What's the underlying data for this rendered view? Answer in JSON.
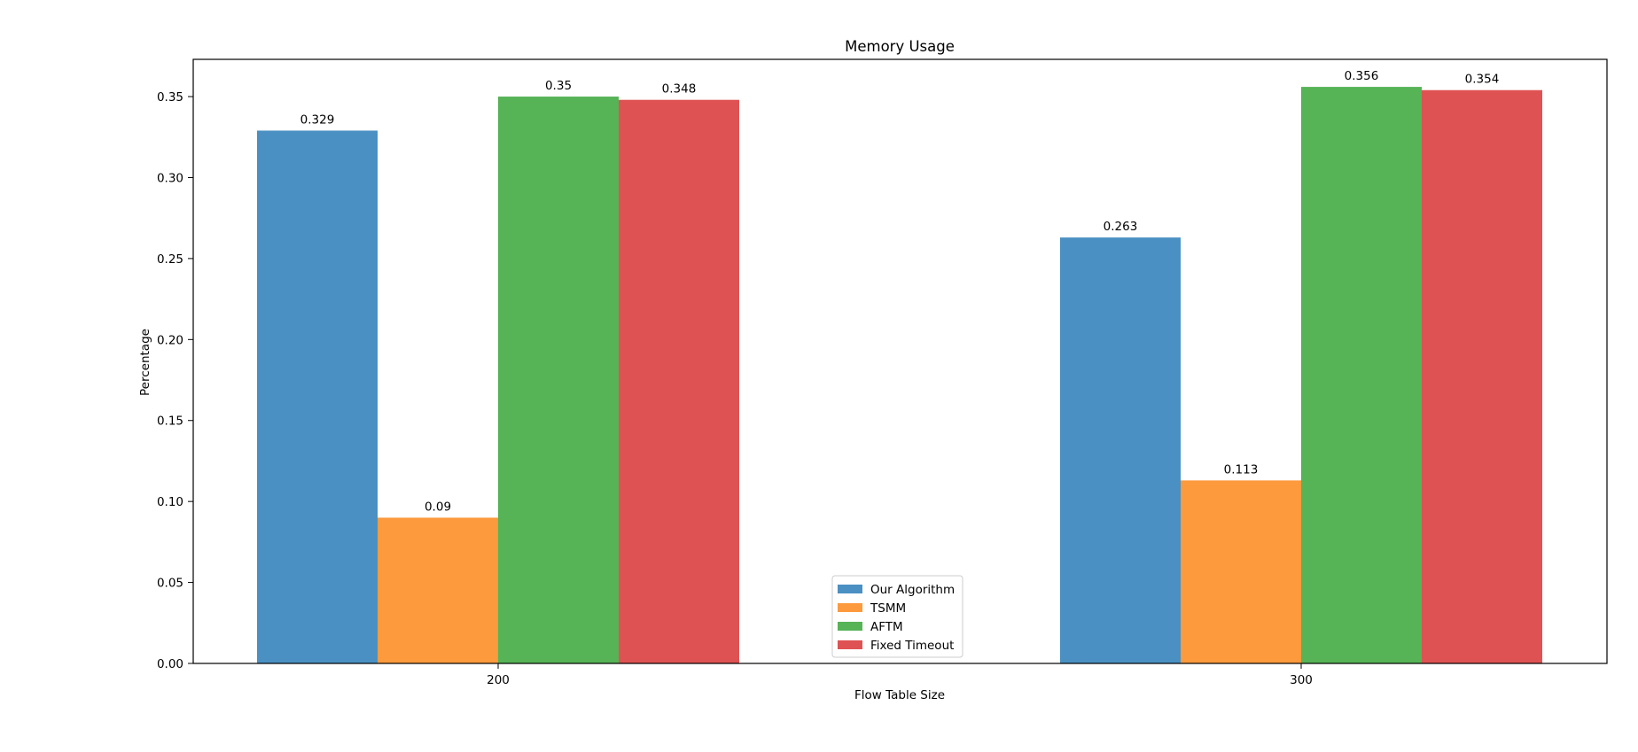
{
  "chart_data": {
    "type": "bar",
    "title": "Memory Usage",
    "xlabel": "Flow Table Size",
    "ylabel": "Percentage",
    "categories": [
      "200",
      "300"
    ],
    "series": [
      {
        "name": "Our Algorithm",
        "color": "#4a90c2",
        "values": [
          0.329,
          0.263
        ],
        "labels": [
          "0.329",
          "0.263"
        ]
      },
      {
        "name": "TSMM",
        "color": "#fd9a3d",
        "values": [
          0.09,
          0.113
        ],
        "labels": [
          "0.09",
          "0.113"
        ]
      },
      {
        "name": "AFTM",
        "color": "#56b356",
        "values": [
          0.35,
          0.356
        ],
        "labels": [
          "0.35",
          "0.356"
        ]
      },
      {
        "name": "Fixed Timeout",
        "color": "#df5253",
        "values": [
          0.348,
          0.354
        ],
        "labels": [
          "0.348",
          "0.354"
        ]
      }
    ],
    "ylim": [
      0,
      0.373
    ],
    "yticks": [
      "0.00",
      "0.05",
      "0.10",
      "0.15",
      "0.20",
      "0.25",
      "0.30",
      "0.35"
    ],
    "grid": false,
    "legend_position": "bottom-center"
  }
}
